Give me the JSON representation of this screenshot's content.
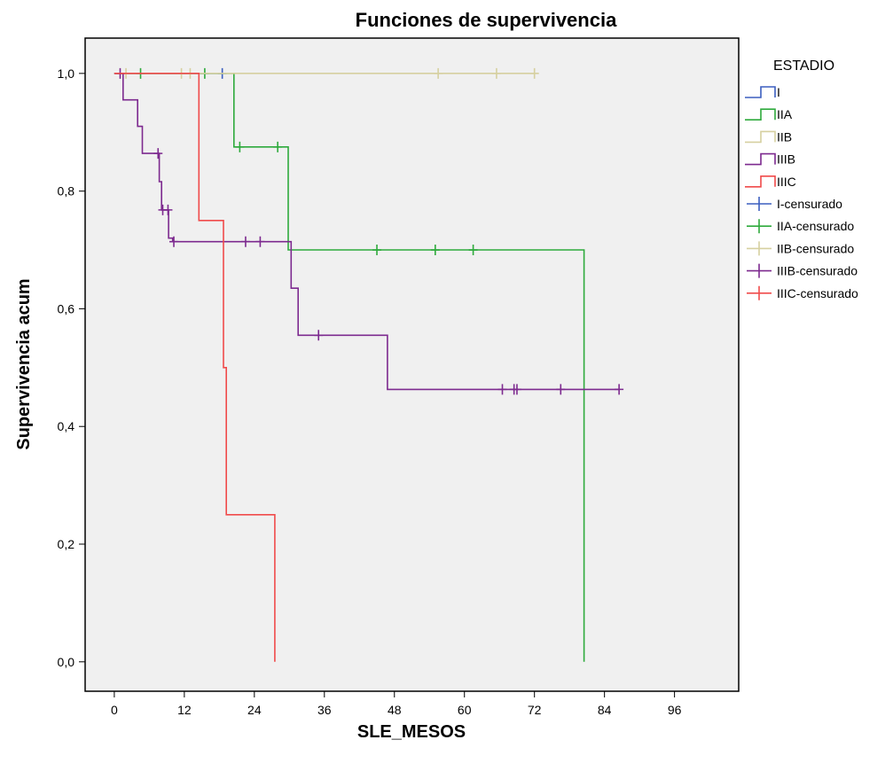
{
  "chart_data": {
    "type": "line",
    "subtype": "kaplan-meier",
    "title": "Funciones de supervivencia",
    "xlabel": "SLE_MESOS",
    "ylabel": "Supervivencia acum",
    "xlim": [
      -5,
      107
    ],
    "ylim": [
      -0.05,
      1.06
    ],
    "x_ticks": [
      0,
      12,
      24,
      36,
      48,
      60,
      72,
      84,
      96
    ],
    "x_tick_labels": [
      "0",
      "12",
      "24",
      "36",
      "48",
      "60",
      "72",
      "84",
      "96"
    ],
    "y_ticks": [
      0,
      0.2,
      0.4,
      0.6,
      0.8,
      1.0
    ],
    "y_tick_labels": [
      "0,0",
      "0,2",
      "0,4",
      "0,6",
      "0,8",
      "1,0"
    ],
    "plot_background": "#f0f0f0",
    "grid": false,
    "legend_title": "ESTADIO",
    "legend_position": "right",
    "series": [
      {
        "name": "I",
        "censored_label": "I-censurado",
        "color": "#3c5fbf",
        "steps": [
          [
            0,
            1.0
          ],
          [
            18.5,
            1.0
          ]
        ],
        "censored": [
          [
            18.5,
            1.0
          ]
        ]
      },
      {
        "name": "IIA",
        "censored_label": "IIA-censurado",
        "color": "#2eaa3c",
        "steps": [
          [
            0,
            1.0
          ],
          [
            20.5,
            1.0
          ],
          [
            20.5,
            0.875
          ],
          [
            29.8,
            0.875
          ],
          [
            29.8,
            0.7
          ],
          [
            80.5,
            0.7
          ],
          [
            80.5,
            0.0
          ]
        ],
        "censored": [
          [
            4.5,
            1.0
          ],
          [
            15.5,
            1.0
          ],
          [
            21.5,
            0.875
          ],
          [
            28.0,
            0.875
          ],
          [
            45.0,
            0.7
          ],
          [
            55.0,
            0.7
          ],
          [
            61.5,
            0.7
          ]
        ]
      },
      {
        "name": "IIB",
        "censored_label": "IIB-censurado",
        "color": "#d6d0a0",
        "steps": [
          [
            0,
            1.0
          ],
          [
            72.0,
            1.0
          ]
        ],
        "censored": [
          [
            2.0,
            1.0
          ],
          [
            11.5,
            1.0
          ],
          [
            13.0,
            1.0
          ],
          [
            55.5,
            1.0
          ],
          [
            65.5,
            1.0
          ],
          [
            72.0,
            1.0
          ]
        ]
      },
      {
        "name": "IIIB",
        "censored_label": "IIIB-censurado",
        "color": "#7d2a8f",
        "steps": [
          [
            0,
            1.0
          ],
          [
            1.5,
            1.0
          ],
          [
            1.5,
            0.955
          ],
          [
            4.0,
            0.955
          ],
          [
            4.0,
            0.91
          ],
          [
            4.8,
            0.91
          ],
          [
            4.8,
            0.864
          ],
          [
            7.7,
            0.864
          ],
          [
            7.7,
            0.816
          ],
          [
            8.1,
            0.816
          ],
          [
            8.1,
            0.768
          ],
          [
            9.3,
            0.768
          ],
          [
            9.3,
            0.72
          ],
          [
            10.0,
            0.72
          ],
          [
            10.0,
            0.714
          ],
          [
            30.3,
            0.714
          ],
          [
            30.3,
            0.635
          ],
          [
            31.5,
            0.635
          ],
          [
            31.5,
            0.555
          ],
          [
            46.8,
            0.555
          ],
          [
            46.8,
            0.463
          ],
          [
            86.5,
            0.463
          ]
        ],
        "censored": [
          [
            1.0,
            1.0
          ],
          [
            7.5,
            0.864
          ],
          [
            8.3,
            0.768
          ],
          [
            9.2,
            0.768
          ],
          [
            10.2,
            0.714
          ],
          [
            22.5,
            0.714
          ],
          [
            25.0,
            0.714
          ],
          [
            35.0,
            0.555
          ],
          [
            66.5,
            0.463
          ],
          [
            68.5,
            0.463
          ],
          [
            69.0,
            0.463
          ],
          [
            76.5,
            0.463
          ],
          [
            86.5,
            0.463
          ]
        ]
      },
      {
        "name": "IIIC",
        "censored_label": "IIIC-censurado",
        "color": "#f04b4b",
        "steps": [
          [
            0,
            1.0
          ],
          [
            14.5,
            1.0
          ],
          [
            14.5,
            0.75
          ],
          [
            18.7,
            0.75
          ],
          [
            18.7,
            0.5
          ],
          [
            19.2,
            0.5
          ],
          [
            19.2,
            0.25
          ],
          [
            27.5,
            0.25
          ],
          [
            27.5,
            0.0
          ]
        ],
        "censored": []
      }
    ]
  }
}
